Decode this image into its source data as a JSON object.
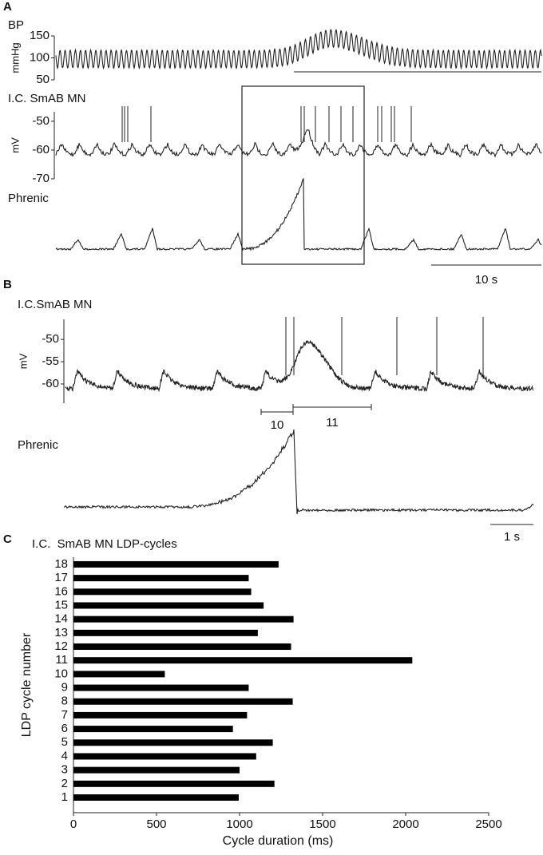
{
  "chart_data": [
    {
      "type": "trace",
      "panel": "A",
      "traces": [
        {
          "label": "BP",
          "unit": "mmHg",
          "ylim": [
            50,
            150
          ],
          "yticks": [
            50,
            100,
            150
          ]
        },
        {
          "label": "I.C. SmAB MN",
          "unit": "mV",
          "ylim": [
            -70,
            -46.7
          ],
          "yticks": [
            -70,
            -60,
            -50
          ]
        },
        {
          "label": "Phrenic"
        }
      ],
      "scale_bar": "10 s"
    },
    {
      "type": "trace",
      "panel": "B",
      "traces": [
        {
          "label": "I.C.SmAB MN",
          "unit": "mV",
          "ylim": [
            -64.3,
            -45.5
          ],
          "yticks": [
            -60,
            -55,
            -50
          ]
        },
        {
          "label": "Phrenic"
        }
      ],
      "brackets": [
        "10",
        "11"
      ],
      "scale_bar": "1 s"
    },
    {
      "type": "bar",
      "panel": "C",
      "orientation": "horizontal",
      "title": "I.C.  SmAB MN LDP-cycles",
      "x_label": "Cycle duration (ms)",
      "y_label": "LDP cycle number",
      "categories": [
        "1",
        "2",
        "3",
        "4",
        "5",
        "6",
        "7",
        "8",
        "9",
        "10",
        "11",
        "12",
        "13",
        "14",
        "15",
        "16",
        "17",
        "18"
      ],
      "values": [
        995,
        1210,
        1000,
        1100,
        1200,
        960,
        1045,
        1320,
        1055,
        550,
        2040,
        1310,
        1110,
        1325,
        1145,
        1070,
        1055,
        1235
      ],
      "color": "#000000",
      "xlim": [
        0,
        2500
      ],
      "xticks": [
        0,
        500,
        1000,
        1500,
        2000,
        2500
      ]
    }
  ]
}
